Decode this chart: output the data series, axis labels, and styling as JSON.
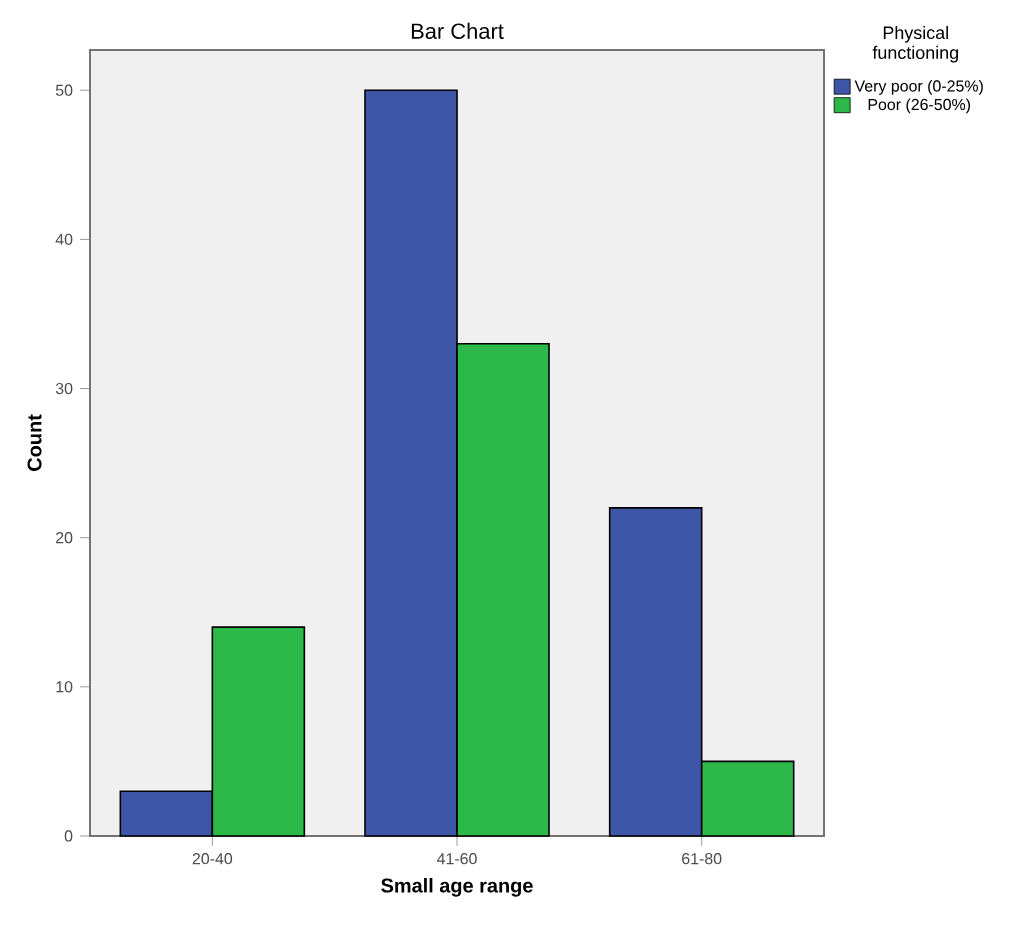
{
  "chart_data": {
    "type": "bar",
    "title": "Bar Chart",
    "xlabel": "Small age range",
    "ylabel": "Count",
    "legend_title": "Physical functioning",
    "categories": [
      "20-40",
      "41-60",
      "61-80"
    ],
    "series": [
      {
        "name": "Very poor (0-25%)",
        "color": "#3e56a8",
        "values": [
          3,
          50,
          22
        ]
      },
      {
        "name": "Poor (26-50%)",
        "color": "#2db84a",
        "values": [
          14,
          33,
          5
        ]
      }
    ],
    "ylim": [
      0,
      52.7
    ],
    "yticks": [
      0,
      10,
      20,
      30,
      40,
      50
    ],
    "grid": false,
    "legend": "top right"
  }
}
